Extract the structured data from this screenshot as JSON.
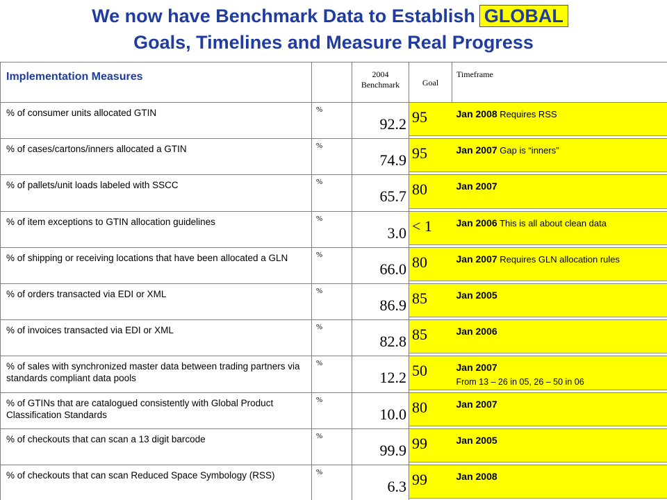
{
  "title": {
    "line1": "We now have Benchmark Data to Establish",
    "highlight": "GLOBAL",
    "line2": "Goals, Timelines and Measure Real Progress"
  },
  "table": {
    "headers": {
      "measures": "Implementation Measures",
      "benchmark": "2004 Benchmark",
      "goal": "Goal",
      "timeframe": "Timeframe"
    },
    "rows": [
      {
        "measure": "% of consumer units allocated GTIN",
        "unit": "%",
        "benchmark": "92.2",
        "goal": "95",
        "date": "Jan 2008",
        "note": "Requires RSS",
        "note2": ""
      },
      {
        "measure": "% of cases/cartons/inners allocated a GTIN",
        "unit": "%",
        "benchmark": "74.9",
        "goal": "95",
        "date": "Jan 2007",
        "note": "Gap is “inners”",
        "note2": ""
      },
      {
        "measure": "% of pallets/unit loads labeled with SSCC",
        "unit": "%",
        "benchmark": "65.7",
        "goal": "80",
        "date": "Jan 2007",
        "note": "",
        "note2": ""
      },
      {
        "measure": "% of item exceptions to GTIN allocation guidelines",
        "unit": "%",
        "benchmark": "3.0",
        "goal": "< 1",
        "date": "Jan 2006",
        "note": "This is all about clean data",
        "note2": ""
      },
      {
        "measure": "% of shipping or receiving locations that have been allocated a GLN",
        "unit": "%",
        "benchmark": "66.0",
        "goal": "80",
        "date": "Jan 2007",
        "note": "Requires GLN allocation rules",
        "note2": ""
      },
      {
        "measure": "% of orders transacted via EDI or XML",
        "unit": "%",
        "benchmark": "86.9",
        "goal": "85",
        "date": "Jan 2005",
        "note": "",
        "note2": ""
      },
      {
        "measure": "% of invoices transacted via EDI or XML",
        "unit": "%",
        "benchmark": "82.8",
        "goal": "85",
        "date": "Jan 2006",
        "note": "",
        "note2": ""
      },
      {
        "measure": "% of sales with synchronized master data between trading partners via standards compliant data pools",
        "unit": "%",
        "benchmark": "12.2",
        "goal": "50",
        "date": "Jan 2007",
        "note": "",
        "note2": "From 13 – 26 in 05, 26 – 50 in 06"
      },
      {
        "measure": "% of GTINs that are catalogued consistently with Global Product Classification Standards",
        "unit": "%",
        "benchmark": "10.0",
        "goal": "80",
        "date": "Jan 2007",
        "note": "",
        "note2": ""
      },
      {
        "measure": "% of checkouts that can scan a 13 digit barcode",
        "unit": "%",
        "benchmark": "99.9",
        "goal": "99",
        "date": "Jan 2005",
        "note": "",
        "note2": ""
      },
      {
        "measure": "% of checkouts that can scan Reduced Space Symbology (RSS)",
        "unit": "%",
        "benchmark": "6.3",
        "goal": "99",
        "date": "Jan 2008",
        "note": "",
        "note2": ""
      }
    ]
  },
  "colors": {
    "title": "#1f3c9e",
    "highlight": "#ffff00"
  }
}
